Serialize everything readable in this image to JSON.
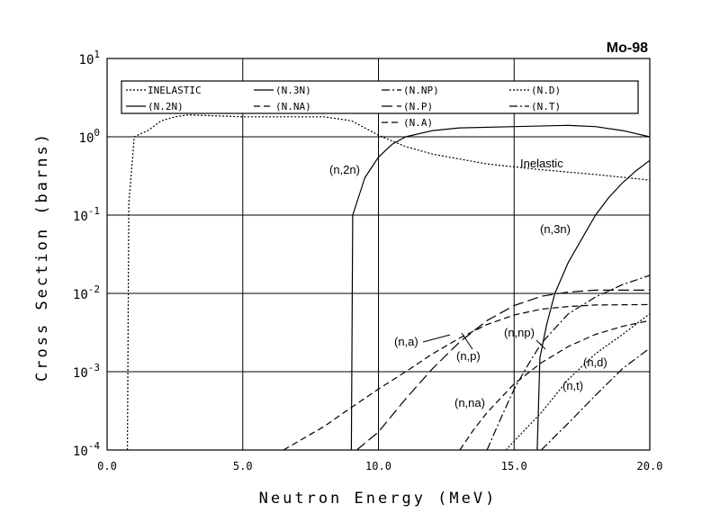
{
  "chart_data": {
    "type": "line",
    "title": "Mo-98",
    "xlabel": "Neutron Energy (MeV)",
    "ylabel": "Cross Section (barns)",
    "xlim": [
      0,
      20
    ],
    "ylim": [
      0.0001,
      10
    ],
    "yscale": "log",
    "grid": true,
    "legend_position": "top",
    "x_ticks": [
      "0.0",
      "5.0",
      "10.0",
      "15.0",
      "20.0"
    ],
    "y_ticks": [
      {
        "base": "10",
        "exp": "1"
      },
      {
        "base": "10",
        "exp": "0"
      },
      {
        "base": "10",
        "exp": "-1"
      },
      {
        "base": "10",
        "exp": "-2"
      },
      {
        "base": "10",
        "exp": "-3"
      },
      {
        "base": "10",
        "exp": "-4"
      }
    ],
    "legend": [
      {
        "label": "INELASTIC",
        "series": "inelastic"
      },
      {
        "label": "(N.3N)",
        "series": "n3n"
      },
      {
        "label": "(N.NP)",
        "series": "nnp"
      },
      {
        "label": "(N.D)",
        "series": "nd"
      },
      {
        "label": "(N.2N)",
        "series": "n2n"
      },
      {
        "label": "(N.NA)",
        "series": "nna"
      },
      {
        "label": "(N.P)",
        "series": "np"
      },
      {
        "label": "(N.T)",
        "series": "nt"
      },
      {
        "label": "(N.A)",
        "series": "na"
      }
    ],
    "annotations": [
      {
        "text": "Inelastic",
        "series": "inelastic"
      },
      {
        "text": "(n,2n)",
        "series": "n2n"
      },
      {
        "text": "(n,3n)",
        "series": "n3n"
      },
      {
        "text": "(n,a)",
        "series": "na"
      },
      {
        "text": "(n,p)",
        "series": "np"
      },
      {
        "text": "(n,np)",
        "series": "nnp"
      },
      {
        "text": "(n,na)",
        "series": "nna"
      },
      {
        "text": "(n,d)",
        "series": "nd"
      },
      {
        "text": "(n,t)",
        "series": "nt"
      }
    ],
    "series": [
      {
        "id": "inelastic",
        "name": "INELASTIC",
        "style": "dotted",
        "points": [
          [
            0.75,
            0.0001
          ],
          [
            0.8,
            0.14
          ],
          [
            1.0,
            1.0
          ],
          [
            1.5,
            1.2
          ],
          [
            2.0,
            1.6
          ],
          [
            2.5,
            1.8
          ],
          [
            3.0,
            1.9
          ],
          [
            5.0,
            1.8
          ],
          [
            8.0,
            1.8
          ],
          [
            9.0,
            1.6
          ],
          [
            9.5,
            1.3
          ],
          [
            10.0,
            1.05
          ],
          [
            11.0,
            0.75
          ],
          [
            12.0,
            0.6
          ],
          [
            14.0,
            0.45
          ],
          [
            16.0,
            0.38
          ],
          [
            18.0,
            0.33
          ],
          [
            20.0,
            0.28
          ]
        ]
      },
      {
        "id": "n2n",
        "name": "(N.2N)",
        "style": "solid",
        "points": [
          [
            9.0,
            0.0001
          ],
          [
            9.05,
            0.1
          ],
          [
            9.5,
            0.3
          ],
          [
            10.0,
            0.55
          ],
          [
            10.5,
            0.8
          ],
          [
            11.0,
            1.0
          ],
          [
            12.0,
            1.2
          ],
          [
            13.0,
            1.3
          ],
          [
            15.0,
            1.35
          ],
          [
            17.0,
            1.4
          ],
          [
            18.0,
            1.35
          ],
          [
            19.0,
            1.2
          ],
          [
            20.0,
            1.0
          ]
        ]
      },
      {
        "id": "n3n",
        "name": "(N.3N)",
        "style": "solid",
        "points": [
          [
            15.85,
            0.0001
          ],
          [
            15.95,
            0.0015
          ],
          [
            16.2,
            0.004
          ],
          [
            16.5,
            0.01
          ],
          [
            17.0,
            0.025
          ],
          [
            17.5,
            0.05
          ],
          [
            18.0,
            0.1
          ],
          [
            18.5,
            0.17
          ],
          [
            19.0,
            0.26
          ],
          [
            19.5,
            0.37
          ],
          [
            20.0,
            0.5
          ]
        ]
      },
      {
        "id": "na",
        "name": "(N.A)",
        "style": "dashed",
        "points": [
          [
            6.5,
            0.0001
          ],
          [
            8.0,
            0.0002
          ],
          [
            9.0,
            0.00035
          ],
          [
            10.0,
            0.0006
          ],
          [
            11.0,
            0.001
          ],
          [
            12.0,
            0.0017
          ],
          [
            13.0,
            0.0027
          ],
          [
            14.0,
            0.004
          ],
          [
            15.0,
            0.0053
          ],
          [
            16.0,
            0.0063
          ],
          [
            17.0,
            0.0068
          ],
          [
            18.0,
            0.0071
          ],
          [
            20.0,
            0.0072
          ]
        ]
      },
      {
        "id": "np",
        "name": "(N.P)",
        "style": "longdash",
        "points": [
          [
            9.2,
            0.0001
          ],
          [
            10.0,
            0.00017
          ],
          [
            11.0,
            0.00045
          ],
          [
            12.0,
            0.0011
          ],
          [
            13.0,
            0.0024
          ],
          [
            14.0,
            0.0045
          ],
          [
            15.0,
            0.007
          ],
          [
            16.0,
            0.0092
          ],
          [
            17.0,
            0.0104
          ],
          [
            18.0,
            0.011
          ],
          [
            20.0,
            0.011
          ]
        ]
      },
      {
        "id": "nnp",
        "name": "(N.NP)",
        "style": "dashdot",
        "points": [
          [
            14.0,
            0.0001
          ],
          [
            14.5,
            0.00025
          ],
          [
            15.0,
            0.0006
          ],
          [
            15.5,
            0.0012
          ],
          [
            16.0,
            0.0023
          ],
          [
            17.0,
            0.0055
          ],
          [
            18.0,
            0.009
          ],
          [
            19.0,
            0.013
          ],
          [
            20.0,
            0.017
          ]
        ]
      },
      {
        "id": "nna",
        "name": "(N.NA)",
        "style": "dashed",
        "points": [
          [
            13.0,
            0.0001
          ],
          [
            13.5,
            0.00018
          ],
          [
            14.0,
            0.0003
          ],
          [
            15.0,
            0.0007
          ],
          [
            16.0,
            0.0013
          ],
          [
            17.0,
            0.0021
          ],
          [
            18.0,
            0.003
          ],
          [
            19.0,
            0.0038
          ],
          [
            20.0,
            0.0045
          ]
        ]
      },
      {
        "id": "nd",
        "name": "(N.D)",
        "style": "dotted",
        "points": [
          [
            14.7,
            0.0001
          ],
          [
            15.0,
            0.00013
          ],
          [
            16.0,
            0.0003
          ],
          [
            17.0,
            0.0008
          ],
          [
            18.0,
            0.0017
          ],
          [
            19.0,
            0.003
          ],
          [
            20.0,
            0.0055
          ]
        ]
      },
      {
        "id": "nt",
        "name": "(N.T)",
        "style": "dashdot",
        "points": [
          [
            16.0,
            0.0001
          ],
          [
            17.0,
            0.00022
          ],
          [
            18.0,
            0.0005
          ],
          [
            19.0,
            0.0011
          ],
          [
            20.0,
            0.002
          ]
        ]
      }
    ]
  }
}
